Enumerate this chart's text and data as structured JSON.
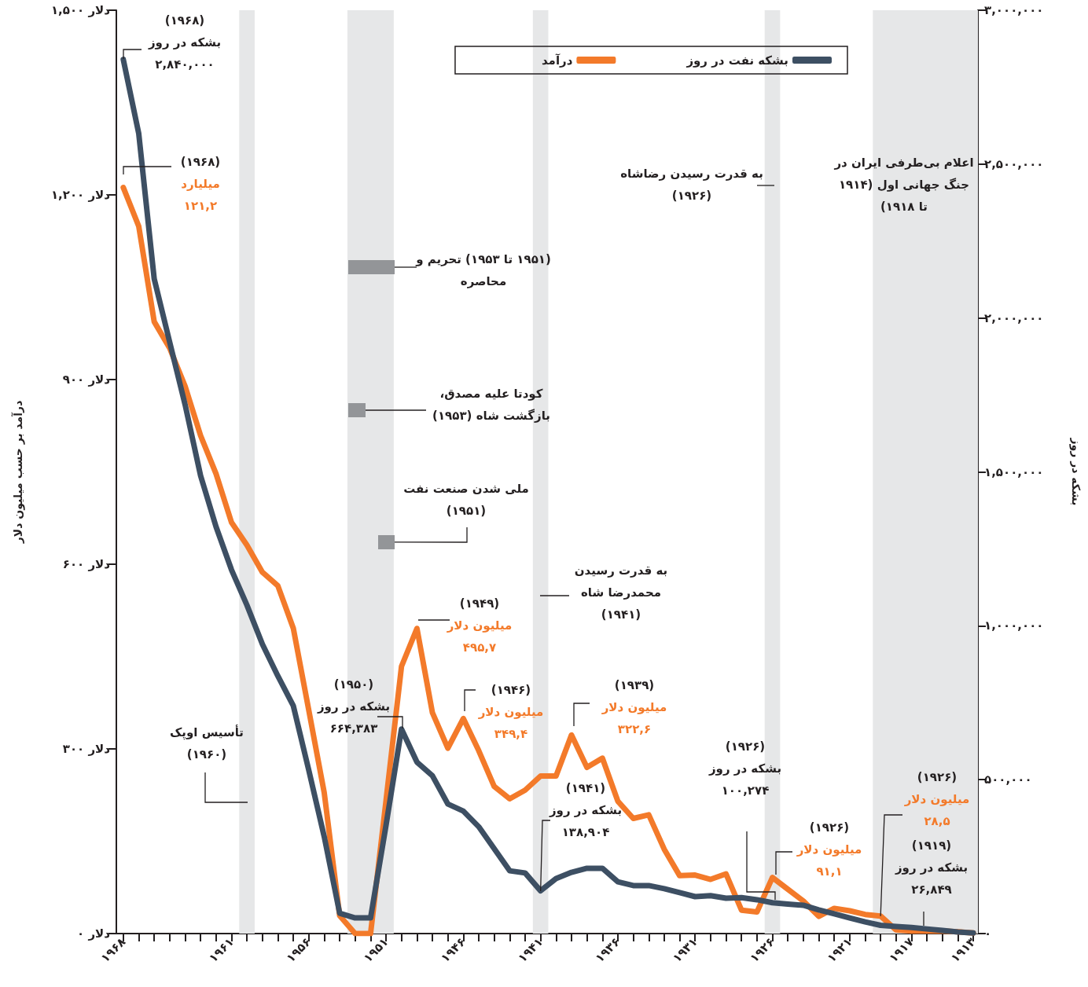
{
  "chart_data": {
    "type": "line",
    "xlim": [
      1968.45,
      1912.7
    ],
    "xticks": [
      {
        "value": 1968,
        "label": "۱۹۶۸"
      },
      {
        "value": 1967,
        "label": null
      },
      {
        "value": 1966,
        "label": null
      },
      {
        "value": 1965,
        "label": null
      },
      {
        "value": 1964,
        "label": null
      },
      {
        "value": 1963,
        "label": null
      },
      {
        "value": 1962,
        "label": null
      },
      {
        "value": 1961,
        "label": "۱۹۶۱"
      },
      {
        "value": 1960,
        "label": null
      },
      {
        "value": 1959,
        "label": null
      },
      {
        "value": 1958,
        "label": null
      },
      {
        "value": 1957,
        "label": null
      },
      {
        "value": 1956,
        "label": "۱۹۵۶"
      },
      {
        "value": 1955,
        "label": null
      },
      {
        "value": 1954,
        "label": null
      },
      {
        "value": 1953,
        "label": null
      },
      {
        "value": 1952,
        "label": null
      },
      {
        "value": 1951,
        "label": "۱۹۵۱"
      },
      {
        "value": 1950,
        "label": null
      },
      {
        "value": 1949,
        "label": null
      },
      {
        "value": 1948,
        "label": null
      },
      {
        "value": 1947,
        "label": null
      },
      {
        "value": 1946,
        "label": "۱۹۴۶"
      },
      {
        "value": 1945,
        "label": null
      },
      {
        "value": 1944,
        "label": null
      },
      {
        "value": 1943,
        "label": null
      },
      {
        "value": 1942,
        "label": null
      },
      {
        "value": 1941,
        "label": "۱۹۴۱"
      },
      {
        "value": 1940,
        "label": null
      },
      {
        "value": 1939,
        "label": null
      },
      {
        "value": 1938,
        "label": null
      },
      {
        "value": 1937,
        "label": null
      },
      {
        "value": 1936,
        "label": "۱۹۳۶"
      },
      {
        "value": 1935,
        "label": null
      },
      {
        "value": 1934,
        "label": null
      },
      {
        "value": 1933,
        "label": null
      },
      {
        "value": 1932,
        "label": null
      },
      {
        "value": 1931,
        "label": "۱۹۳۱"
      },
      {
        "value": 1930,
        "label": null
      },
      {
        "value": 1929,
        "label": null
      },
      {
        "value": 1928,
        "label": null
      },
      {
        "value": 1927,
        "label": null
      },
      {
        "value": 1926,
        "label": "۱۹۲۶"
      },
      {
        "value": 1925,
        "label": null
      },
      {
        "value": 1924,
        "label": null
      },
      {
        "value": 1923,
        "label": null
      },
      {
        "value": 1922,
        "label": null
      },
      {
        "value": 1921,
        "label": "۱۹۲۱"
      },
      {
        "value": 1920,
        "label": null
      },
      {
        "value": 1919,
        "label": null
      },
      {
        "value": 1918,
        "label": null
      },
      {
        "value": 1917,
        "label": "۱۹۱۷"
      },
      {
        "value": 1916,
        "label": null
      },
      {
        "value": 1915,
        "label": null
      },
      {
        "value": 1914,
        "label": null
      },
      {
        "value": 1913,
        "label": "۱۹۱۳"
      }
    ],
    "ylim": [
      0,
      1500
    ],
    "yticks": [
      {
        "value": 0,
        "label": "۰ دلار"
      },
      {
        "value": 300,
        "label": "۳۰۰ دلار"
      },
      {
        "value": 600,
        "label": "۶۰۰ دلار"
      },
      {
        "value": 900,
        "label": "۹۰۰ دلار"
      },
      {
        "value": 1200,
        "label": "۱,۲۰۰ دلار"
      },
      {
        "value": 1500,
        "label": "۱,۵۰۰ دلار"
      }
    ],
    "y2lim": [
      0,
      3000000
    ],
    "y2ticks": [
      {
        "value": 0,
        "label": "۰"
      },
      {
        "value": 500000,
        "label": "۵۰۰,۰۰۰"
      },
      {
        "value": 1000000,
        "label": "۱,۰۰۰,۰۰۰"
      },
      {
        "value": 1500000,
        "label": "۱,۵۰۰,۰۰۰"
      },
      {
        "value": 2000000,
        "label": "۲,۰۰۰,۰۰۰"
      },
      {
        "value": 2500000,
        "label": "۲,۵۰۰,۰۰۰"
      },
      {
        "value": 3000000,
        "label": "۳,۰۰۰,۰۰۰"
      }
    ],
    "ylabel": "درآمد بر حسب میلیون دلار",
    "y2label": "بشکه در روز",
    "x": [
      1913,
      1914,
      1915,
      1916,
      1917,
      1918,
      1919,
      1920,
      1921,
      1922,
      1923,
      1924,
      1925,
      1926,
      1927,
      1928,
      1929,
      1930,
      1931,
      1932,
      1933,
      1934,
      1935,
      1936,
      1937,
      1938,
      1939,
      1940,
      1941,
      1942,
      1943,
      1944,
      1945,
      1946,
      1947,
      1948,
      1949,
      1950,
      1951,
      1952,
      1953,
      1954,
      1955,
      1956,
      1957,
      1958,
      1959,
      1960,
      1961,
      1962,
      1963,
      1964,
      1965,
      1966,
      1967,
      1968
    ],
    "series": [
      {
        "name": "درآمد",
        "color": "#f37a2a",
        "values": [
          1,
          3,
          4,
          4,
          4,
          6,
          28.5,
          31,
          37,
          41,
          28,
          53,
          72,
          91.1,
          35,
          38,
          97,
          88,
          95,
          94,
          137,
          193,
          187,
          215,
          285,
          270,
          322.6,
          256,
          256,
          233,
          219,
          239,
          297,
          349.4,
          301,
          359,
          495.7,
          434,
          216,
          0,
          0,
          29,
          229,
          363,
          496,
          565,
          587,
          631,
          668,
          747,
          809,
          889,
          951,
          994,
          1149,
          1212
        ]
      },
      {
        "name": "بشکه نفت در روز",
        "color": "#3d4f63",
        "axis": "y2",
        "values": [
          2000,
          5000,
          10000,
          15000,
          20000,
          23000,
          26849,
          38000,
          51000,
          64000,
          77000,
          92000,
          96000,
          100274,
          110000,
          117000,
          115000,
          123000,
          120000,
          133000,
          146000,
          156000,
          156000,
          168000,
          212000,
          212000,
          199000,
          179000,
          138904,
          197000,
          204000,
          276000,
          347000,
          398000,
          421000,
          513000,
          557000,
          664383,
          352000,
          51000,
          51000,
          66000,
          315000,
          531000,
          740000,
          837000,
          940000,
          1067000,
          1182000,
          1322000,
          1488000,
          1718000,
          1922000,
          2127000,
          2599000,
          2840000
        ]
      }
    ],
    "bands": [
      {
        "axis": "x",
        "from": 1960.5,
        "to": 1959.5,
        "color": "#e6e7e8"
      },
      {
        "axis": "x",
        "from": 1953.5,
        "to": 1950.5,
        "color": "#e6e7e8"
      },
      {
        "axis": "x",
        "from": 1941.5,
        "to": 1940.5,
        "color": "#e6e7e8"
      },
      {
        "axis": "x",
        "from": 1926.5,
        "to": 1925.5,
        "color": "#e6e7e8"
      },
      {
        "axis": "x",
        "from": 1919.5,
        "to": 1912.7,
        "color": "#e6e7e8"
      }
    ],
    "annotations": [
      "(۱۹۶۸)\nبشکه در روز\n۲,۸۴۰,۰۰۰",
      "(۱۹۶۸)\nمیلیارد\n۱۲۱,۲",
      "(۱۹۵۱ تا ۱۹۵۳) تحریم و\nمحاصره",
      "کودتا علیه مصدق،\nبازگشت شاه (۱۹۵۳)",
      {
        "text": "ملی شدن صنعت نفت\n(۱۹۵۱)",
        "x": 1951,
        "y": 636
      },
      "تأسیس اوپک\n(۱۹۶۰)",
      "(۱۹۵۰)\nبشکه در روز\n۶۶۴,۳۸۳",
      "(۱۹۴۹)\nمیلیون دلار\n۴۹۵,۷",
      "به قدرت رسیدن\nمحمدرضا شاه\n(۱۹۴۱)",
      "(۱۹۴۶)\nمیلیون دلار\n۳۴۹,۴",
      "(۱۹۳۹)\nمیلیون دلار\n۳۲۲,۶",
      {
        "text": "(۱۹۴۱)\nبشکه در روز\n۱۳۸,۹۰۴",
        "x": 1941,
        "y": 69
      },
      "به قدرت رسیدن رضاشاه\n(۱۹۲۶)",
      "اعلام بی‌طرفی ایران در\nجنگ جهانی اول (۱۹۱۴\nتا ۱۹۱۸)",
      "(۱۹۲۶)\nبشکه در روز\n۱۰۰,۲۷۴",
      "(۱۹۲۶)\nمیلیون دلار\n۹۱,۱",
      {
        "text": "(۱۹۲۶)\nمیلیون دلار\n۲۸,۵",
        "x": 1919,
        "y": 28.5
      },
      "(۱۹۱۹)\nبشکه در روز\n۲۶,۸۴۹"
    ],
    "legend": "top right",
    "grid": false,
    "marker": "none",
    "line_style": "solid"
  }
}
